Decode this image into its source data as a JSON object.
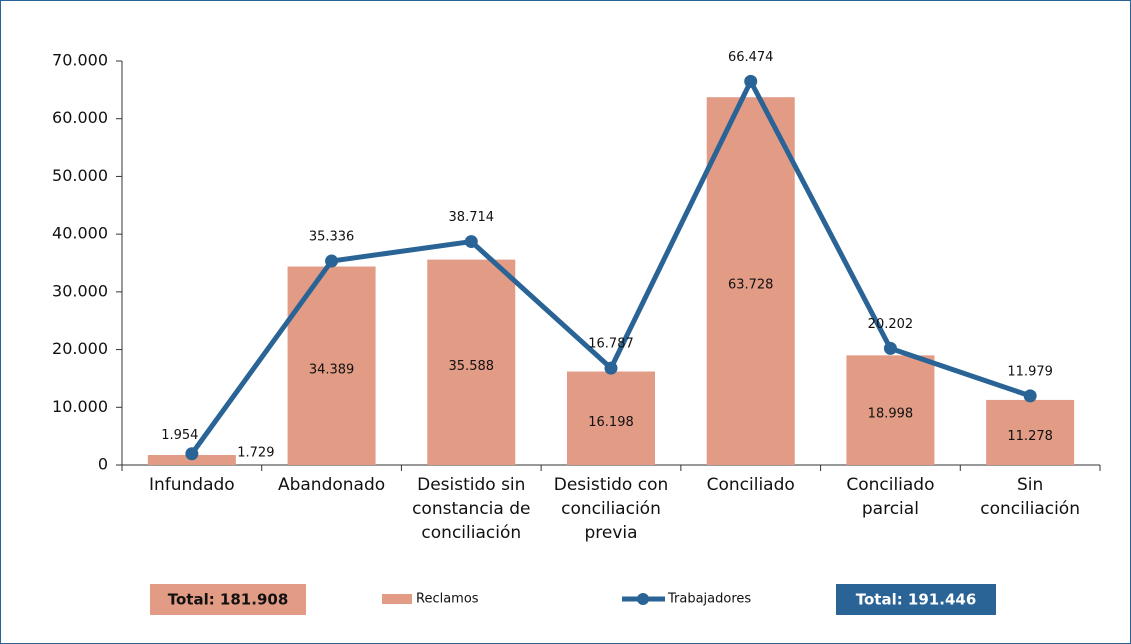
{
  "chart_data": {
    "type": "bar_line",
    "categories": [
      "Infundado",
      "Abandonado",
      "Desistido sin constancia de conciliación",
      "Desistido con conciliación previa",
      "Conciliado",
      "Conciliado parcial",
      "Sin conciliación"
    ],
    "series": [
      {
        "name": "Reclamos",
        "type": "bar",
        "color": "#e29b85",
        "values": [
          1729,
          34389,
          35588,
          16198,
          63728,
          18998,
          11278
        ],
        "value_labels": [
          "1.729",
          "34.389",
          "35.588",
          "16.198",
          "63.728",
          "18.998",
          "11.278"
        ]
      },
      {
        "name": "Trabajadores",
        "type": "line",
        "color": "#2a6496",
        "values": [
          1954,
          35336,
          38714,
          16787,
          66474,
          20202,
          11979
        ],
        "value_labels": [
          "1.954",
          "35.336",
          "38.714",
          "16.787",
          "66.474",
          "20.202",
          "11.979"
        ]
      }
    ],
    "ylim": [
      0,
      70000
    ],
    "yticks": [
      0,
      {
        "value": 10000,
        "label": "10.000"
      },
      {
        "value": 20000,
        "label": "20.000"
      },
      {
        "value": 30000,
        "label": "30.000"
      },
      {
        "value": 40000,
        "label": "40.000"
      },
      {
        "value": 50000,
        "label": "50.000"
      },
      {
        "value": 60000,
        "label": "60.000"
      },
      {
        "value": 70000,
        "label": "70.000"
      }
    ],
    "annotations": [
      "Total: 181.908",
      "Total: 191.446"
    ]
  }
}
